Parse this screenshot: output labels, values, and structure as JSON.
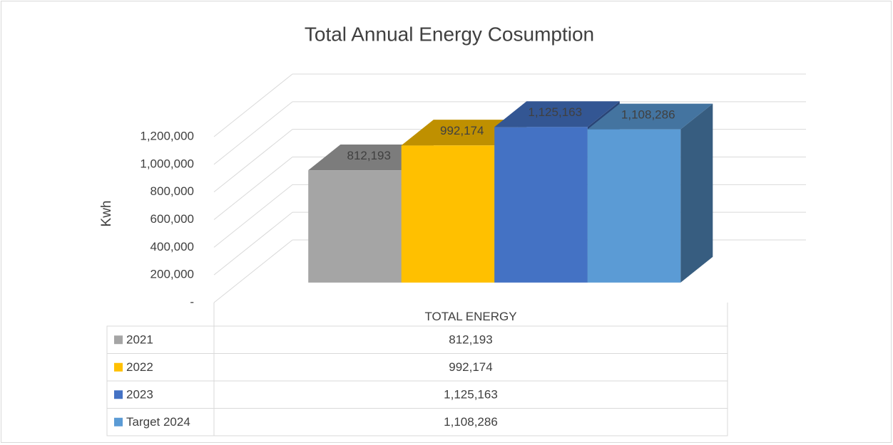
{
  "chart_data": {
    "type": "bar3d",
    "title": "Total Annual Energy Cosumption",
    "y_label": "Kwh",
    "categories": [
      "TOTAL ENERGY"
    ],
    "series": [
      {
        "name": "2021",
        "color": "#a5a5a5",
        "values": [
          812193
        ],
        "value_labels": [
          "812,193"
        ]
      },
      {
        "name": "2022",
        "color": "#ffc000",
        "values": [
          992174
        ],
        "value_labels": [
          "992,174"
        ]
      },
      {
        "name": "2023",
        "color": "#4472c4",
        "values": [
          1125163
        ],
        "value_labels": [
          "1,125,163"
        ]
      },
      {
        "name": "Target 2024",
        "color": "#5b9bd5",
        "values": [
          1108286
        ],
        "value_labels": [
          "1,108,286"
        ]
      }
    ],
    "ylim": [
      0,
      1200000
    ],
    "yticks": [
      {
        "value": 0,
        "label": "-"
      },
      {
        "value": 200000,
        "label": "200,000"
      },
      {
        "value": 400000,
        "label": "400,000"
      },
      {
        "value": 600000,
        "label": "600,000"
      },
      {
        "value": 800000,
        "label": "800,000"
      },
      {
        "value": 1000000,
        "label": "1,000,000"
      },
      {
        "value": 1200000,
        "label": "1,200,000"
      }
    ],
    "grid": true,
    "data_table": true
  }
}
